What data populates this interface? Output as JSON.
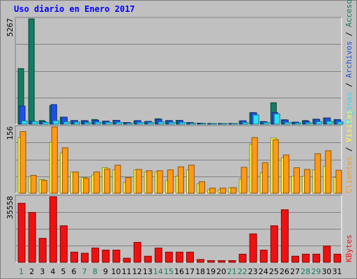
{
  "title": "Uso diario en Enero 2017",
  "colors": {
    "accesos": "#117d63",
    "paginas": "#2be0ff",
    "archivos": "#1e50e6",
    "clientes": "#ffff40",
    "visitas": "#ff9a16",
    "kbytes": "#ee1111",
    "weekend_label": "#117d63",
    "weekday_label": "#000000"
  },
  "legend": {
    "accesos": "Accesos",
    "archivos": "Archivos",
    "paginas": "Páginas",
    "visitas": "Visitas",
    "clientes": "Clientes",
    "kbytes": "KBytes"
  },
  "chart_data": [
    {
      "type": "bar",
      "panel": "hits",
      "ymax_label": "5267",
      "ylim": [
        0,
        5267
      ],
      "categories": [
        "1",
        "2",
        "3",
        "4",
        "5",
        "6",
        "7",
        "8",
        "9",
        "10",
        "11",
        "12",
        "13",
        "14",
        "15",
        "16",
        "17",
        "18",
        "19",
        "20",
        "21",
        "22",
        "23",
        "24",
        "25",
        "26",
        "27",
        "28",
        "29",
        "30",
        "31"
      ],
      "weekend": [
        "1",
        "7",
        "8",
        "14",
        "15",
        "21",
        "22",
        "28",
        "29"
      ],
      "series": [
        {
          "name": "Accesos",
          "key": "accesos",
          "values": [
            2780,
            5267,
            180,
            930,
            350,
            180,
            180,
            230,
            150,
            190,
            80,
            170,
            130,
            270,
            180,
            190,
            80,
            50,
            30,
            30,
            30,
            160,
            580,
            130,
            1070,
            220,
            100,
            180,
            250,
            310,
            230
          ]
        },
        {
          "name": "Archivos",
          "key": "archivos",
          "values": [
            900,
            140,
            120,
            980,
            350,
            180,
            170,
            200,
            150,
            190,
            80,
            180,
            140,
            240,
            180,
            180,
            80,
            40,
            30,
            30,
            30,
            170,
            570,
            120,
            580,
            210,
            100,
            150,
            240,
            310,
            220
          ]
        },
        {
          "name": "Páginas",
          "key": "paginas",
          "values": [
            160,
            130,
            90,
            170,
            110,
            100,
            80,
            100,
            90,
            90,
            50,
            80,
            80,
            110,
            90,
            90,
            50,
            30,
            20,
            20,
            20,
            80,
            460,
            80,
            510,
            90,
            60,
            70,
            120,
            140,
            110
          ]
        }
      ]
    },
    {
      "type": "bar",
      "panel": "visits",
      "ymax_label": "156",
      "ylim": [
        0,
        156
      ],
      "categories": [
        "1",
        "2",
        "3",
        "4",
        "5",
        "6",
        "7",
        "8",
        "9",
        "10",
        "11",
        "12",
        "13",
        "14",
        "15",
        "16",
        "17",
        "18",
        "19",
        "20",
        "21",
        "22",
        "23",
        "24",
        "25",
        "26",
        "27",
        "28",
        "29",
        "30",
        "31"
      ],
      "series": [
        {
          "name": "Clientes",
          "key": "clientes",
          "values": [
            131,
            39,
            32,
            120,
            95,
            50,
            37,
            43,
            60,
            55,
            25,
            55,
            50,
            50,
            30,
            40,
            55,
            22,
            8,
            8,
            13,
            33,
            115,
            48,
            130,
            83,
            40,
            40,
            55,
            63,
            37
          ]
        },
        {
          "name": "Visitas",
          "key": "visitas",
          "values": [
            145,
            42,
            30,
            156,
            107,
            50,
            35,
            50,
            57,
            66,
            37,
            56,
            53,
            53,
            55,
            62,
            66,
            27,
            12,
            12,
            13,
            61,
            131,
            72,
            126,
            90,
            60,
            56,
            93,
            100,
            54
          ]
        }
      ]
    },
    {
      "type": "bar",
      "panel": "kbytes",
      "ymax_label": "35558",
      "ylim": [
        0,
        35558
      ],
      "categories": [
        "1",
        "2",
        "3",
        "4",
        "5",
        "6",
        "7",
        "8",
        "9",
        "10",
        "11",
        "12",
        "13",
        "14",
        "15",
        "16",
        "17",
        "18",
        "19",
        "20",
        "21",
        "22",
        "23",
        "24",
        "25",
        "26",
        "27",
        "28",
        "29",
        "30",
        "31"
      ],
      "series": [
        {
          "name": "KBytes",
          "key": "kbytes",
          "values": [
            32000,
            27000,
            13000,
            35558,
            19800,
            5500,
            4900,
            7700,
            6600,
            6600,
            2200,
            10800,
            3300,
            7700,
            5500,
            5500,
            5500,
            1500,
            900,
            900,
            900,
            4400,
            15400,
            6600,
            19800,
            28500,
            3300,
            4400,
            4400,
            8800,
            4400
          ]
        }
      ]
    }
  ]
}
